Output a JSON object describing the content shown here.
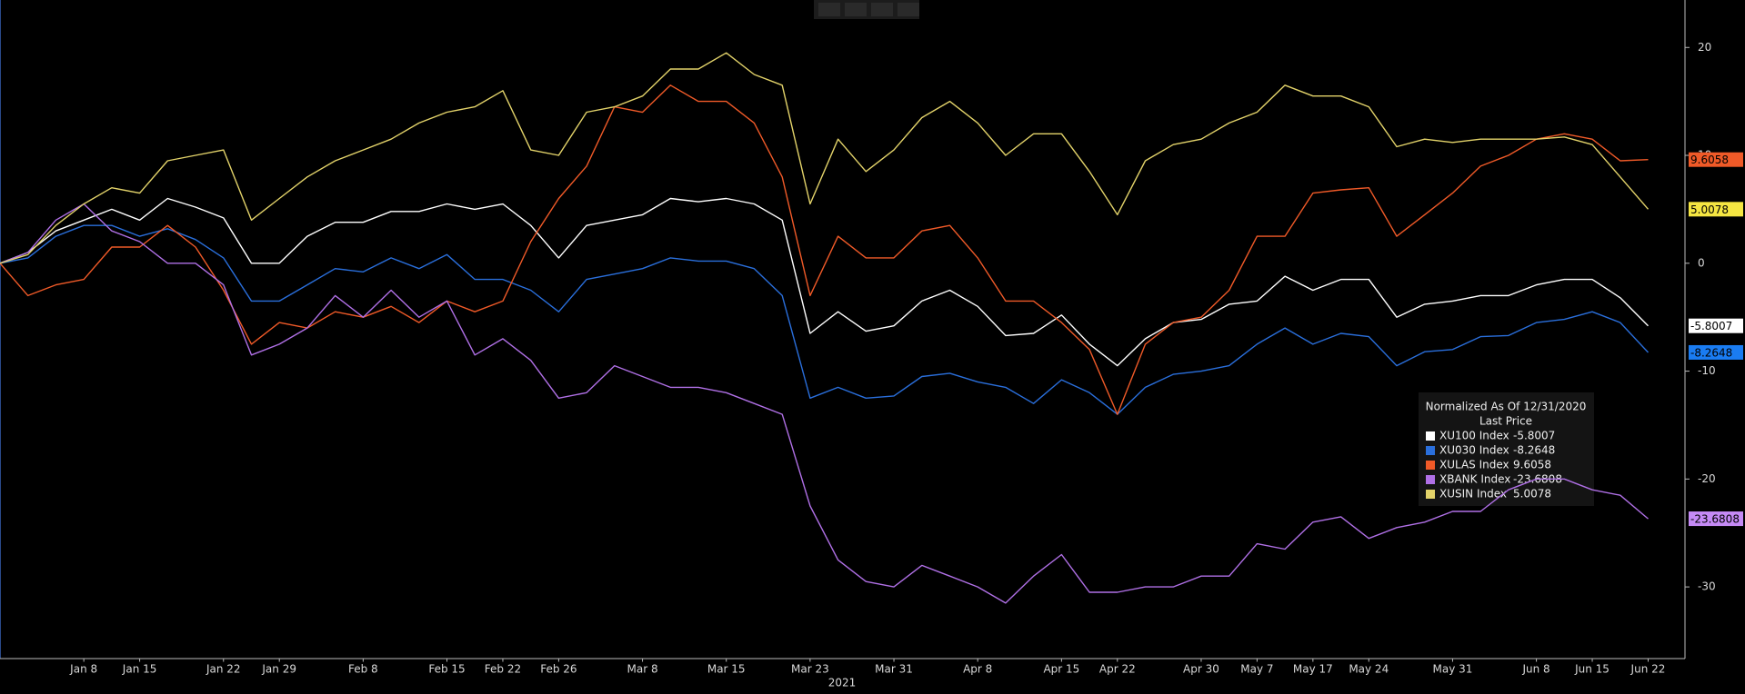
{
  "chart_data": {
    "type": "line",
    "legend_title": "Normalized As Of 12/31/2020",
    "legend_subtitle": "Last Price",
    "x_label": "2021",
    "categories": [
      null,
      null,
      null,
      "Jan 8",
      null,
      "Jan 15",
      null,
      null,
      "Jan 22",
      null,
      "Jan 29",
      null,
      null,
      "Feb 8",
      null,
      null,
      "Feb 15",
      null,
      "Feb 22",
      null,
      "Feb 26",
      null,
      null,
      "Mar 8",
      null,
      null,
      "Mar 15",
      null,
      null,
      "Mar 23",
      null,
      null,
      "Mar 31",
      null,
      null,
      "Apr 8",
      null,
      null,
      "Apr 15",
      null,
      "Apr 22",
      null,
      null,
      "Apr 30",
      null,
      "May 7",
      null,
      "May 17",
      null,
      "May 24",
      null,
      null,
      "May 31",
      null,
      null,
      "Jun 8",
      null,
      "Jun 15",
      null,
      "Jun 22"
    ],
    "ylim": [
      -36.6,
      24.4
    ],
    "yticks": [
      -30,
      -20,
      -10,
      0,
      10,
      20
    ],
    "grid": false,
    "series": [
      {
        "name": "XU100 Index",
        "color": "#ffffff",
        "tag_text": "#000000",
        "values": [
          0,
          1,
          3,
          4,
          5,
          4,
          6,
          5.2,
          4.2,
          0,
          0,
          2.5,
          3.8,
          3.8,
          4.8,
          4.8,
          5.5,
          5,
          5.5,
          3.5,
          0.5,
          3.5,
          4,
          4.5,
          6,
          5.7,
          6,
          5.5,
          4,
          -6.5,
          -4.5,
          -6.3,
          -5.8,
          -3.5,
          -2.5,
          -4,
          -6.7,
          -6.5,
          -4.8,
          -7.5,
          -9.5,
          -7,
          -5.5,
          -5.2,
          -3.8,
          -3.5,
          -1.2,
          -2.5,
          -1.5,
          -1.5,
          -5,
          -3.8,
          -3.5,
          -3,
          -3,
          -2,
          -1.5,
          -1.5,
          -3.2,
          -5.8007
        ]
      },
      {
        "name": "XU030 Index",
        "color": "#2a6fdc",
        "tag_color": "#1a7cf2",
        "tag_text": "#000000",
        "values": [
          0,
          0.5,
          2.5,
          3.5,
          3.5,
          2.5,
          3.2,
          2.2,
          0.5,
          -3.5,
          -3.5,
          -2,
          -0.5,
          -0.8,
          0.5,
          -0.5,
          0.8,
          -1.5,
          -1.5,
          -2.5,
          -4.5,
          -1.5,
          -1,
          -0.5,
          0.5,
          0.2,
          0.2,
          -0.5,
          -3,
          -12.5,
          -11.5,
          -12.5,
          -12.3,
          -10.5,
          -10.2,
          -11,
          -11.5,
          -13,
          -10.8,
          -12,
          -14,
          -11.5,
          -10.3,
          -10,
          -9.5,
          -7.5,
          -6,
          -7.5,
          -6.5,
          -6.8,
          -9.5,
          -8.2,
          -8,
          -6.8,
          -6.7,
          -5.5,
          -5.2,
          -4.5,
          -5.5,
          -8.2648
        ]
      },
      {
        "name": "XULAS Index",
        "color": "#f05a28",
        "tag_text": "#000000",
        "values": [
          0,
          -3,
          -2,
          -1.5,
          1.5,
          1.5,
          3.5,
          1.5,
          -2.5,
          -7.5,
          -5.5,
          -6,
          -4.5,
          -5,
          -4,
          -5.5,
          -3.5,
          -4.5,
          -3.5,
          2,
          6,
          9,
          14.5,
          14,
          16.5,
          15,
          15,
          13,
          8,
          -3,
          2.5,
          0.5,
          0.5,
          3,
          3.5,
          0.5,
          -3.5,
          -3.5,
          -5.5,
          -8,
          -14,
          -7.5,
          -5.5,
          -5,
          -2.5,
          2.5,
          2.5,
          6.5,
          6.8,
          7,
          2.5,
          4.5,
          6.5,
          9,
          10,
          11.5,
          12,
          11.5,
          9.5,
          9.6058
        ]
      },
      {
        "name": "XBANK Index",
        "color": "#b070e6",
        "tag_color": "#c58af5",
        "tag_text": "#000000",
        "values": [
          0,
          1,
          4,
          5.5,
          3,
          2,
          0,
          0,
          -2,
          -8.5,
          -7.5,
          -6,
          -3,
          -5,
          -2.5,
          -5,
          -3.5,
          -8.5,
          -7,
          -9,
          -12.5,
          -12,
          -9.5,
          -10.5,
          -11.5,
          -11.5,
          -12,
          -13,
          -14,
          -22.5,
          -27.5,
          -29.5,
          -30,
          -28,
          -29,
          -30,
          -31.5,
          -29,
          -27,
          -30.5,
          -30.5,
          -30,
          -30,
          -29,
          -29,
          -26,
          -26.5,
          -24,
          -23.5,
          -25.5,
          -24.5,
          -24,
          -23,
          -23,
          -21,
          -20,
          -20,
          -21,
          -21.5,
          -23.6808
        ]
      },
      {
        "name": "XUSIN Index",
        "color": "#e3d36a",
        "tag_color": "#f5e642",
        "tag_text": "#000000",
        "values": [
          0,
          0.8,
          3.5,
          5.5,
          7,
          6.5,
          9.5,
          10,
          10.5,
          4,
          6,
          8,
          9.5,
          10.5,
          11.5,
          13,
          14,
          14.5,
          16,
          10.5,
          10,
          14,
          14.5,
          15.5,
          18,
          18,
          19.5,
          17.5,
          16.5,
          5.5,
          11.5,
          8.5,
          10.5,
          13.5,
          15,
          13,
          10,
          12,
          12,
          8.5,
          4.5,
          9.5,
          11,
          11.5,
          13,
          14,
          16.5,
          15.5,
          15.5,
          14.5,
          10.8,
          11.5,
          11.2,
          11.5,
          11.5,
          11.5,
          11.7,
          11,
          8,
          5.0078
        ]
      }
    ]
  }
}
